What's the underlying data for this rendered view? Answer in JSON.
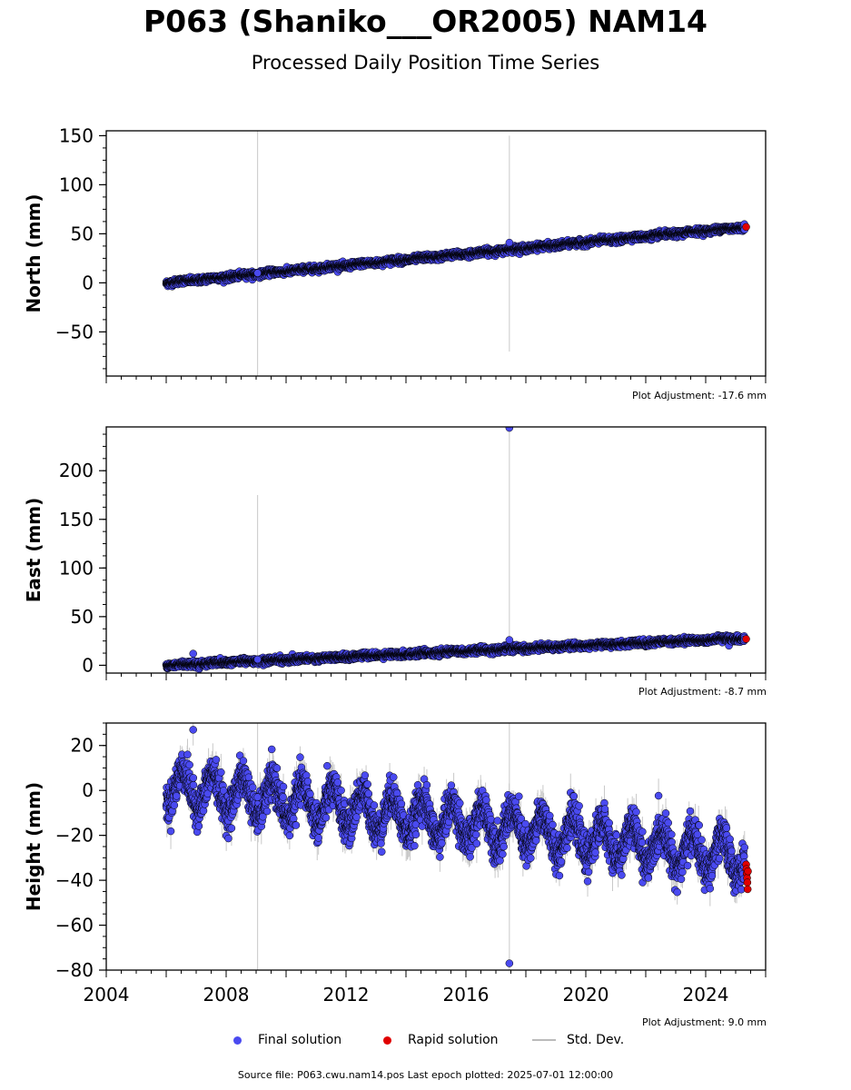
{
  "title": "P063 (Shaniko___OR2005) NAM14",
  "subtitle": "Processed Daily Position Time Series",
  "footer": "Source file: P063.cwu.nam14.pos  Last epoch plotted: 2025-07-01 12:00:00",
  "legend": {
    "final": "Final solution",
    "rapid": "Rapid solution",
    "std": "Std. Dev."
  },
  "colors": {
    "final": "#4a4af0",
    "rapid": "#e00000",
    "std": "#bbbbbb",
    "edge": "#000000"
  },
  "chart_data": [
    {
      "type": "scatter",
      "ylabel": "North (mm)",
      "adjustment": "Plot Adjustment: -17.6 mm",
      "xlim": [
        2004,
        2026
      ],
      "ylim": [
        -95,
        155
      ],
      "yticks": [
        -50,
        0,
        50,
        100,
        150
      ],
      "show_xticklabels": false,
      "trend": {
        "start": [
          2006.0,
          0
        ],
        "end": [
          2025.3,
          57
        ]
      },
      "noise": 1.5,
      "season_amp": 0.5,
      "rapid": {
        "x": [
          2025.35
        ],
        "y": [
          57
        ]
      },
      "outliers": [
        {
          "x": 2009.05,
          "y": 10,
          "err_lo": -95,
          "err_hi": 155
        },
        {
          "x": 2017.45,
          "y": 41,
          "err_lo": -70,
          "err_hi": 150
        }
      ]
    },
    {
      "type": "scatter",
      "ylabel": "East (mm)",
      "adjustment": "Plot Adjustment: -8.7 mm",
      "xlim": [
        2004,
        2026
      ],
      "ylim": [
        -8,
        245
      ],
      "yticks": [
        0,
        50,
        100,
        150,
        200
      ],
      "show_xticklabels": false,
      "trend": {
        "start": [
          2006.0,
          0
        ],
        "end": [
          2025.3,
          28
        ]
      },
      "noise": 1.5,
      "season_amp": 0.5,
      "rapid": {
        "x": [
          2025.35
        ],
        "y": [
          27
        ]
      },
      "outliers": [
        {
          "x": 2009.05,
          "y": 6,
          "err_lo": -8,
          "err_hi": 175
        },
        {
          "x": 2017.45,
          "y": 26,
          "err_lo": 10,
          "err_hi": 245
        },
        {
          "x": 2006.9,
          "y": 12,
          "err_lo": 12,
          "err_hi": 12
        },
        {
          "x": 2017.45,
          "y": 244,
          "err_lo": 244,
          "err_hi": 244
        }
      ]
    },
    {
      "type": "scatter",
      "ylabel": "Height (mm)",
      "adjustment": "Plot Adjustment: 9.0 mm",
      "xlim": [
        2004,
        2026
      ],
      "ylim": [
        -80,
        30
      ],
      "yticks": [
        -80,
        -60,
        -40,
        -20,
        0,
        20
      ],
      "xticks": [
        2004,
        2008,
        2012,
        2016,
        2020,
        2024
      ],
      "show_xticklabels": true,
      "trend": {
        "start": [
          2006.0,
          2
        ],
        "end": [
          2025.3,
          -30
        ]
      },
      "noise": 4,
      "season_amp": 8,
      "rapid": {
        "x": [
          2025.35,
          2025.36,
          2025.37,
          2025.38,
          2025.39,
          2025.4,
          2025.41
        ],
        "y": [
          -33,
          -35,
          -37,
          -39,
          -41,
          -44,
          -36
        ]
      },
      "outliers": [
        {
          "x": 2009.05,
          "y": -3,
          "err_lo": -80,
          "err_hi": 30
        },
        {
          "x": 2017.45,
          "y": -77,
          "err_lo": -80,
          "err_hi": 30
        },
        {
          "x": 2006.9,
          "y": 27,
          "err_lo": 20,
          "err_hi": 30
        }
      ]
    }
  ]
}
